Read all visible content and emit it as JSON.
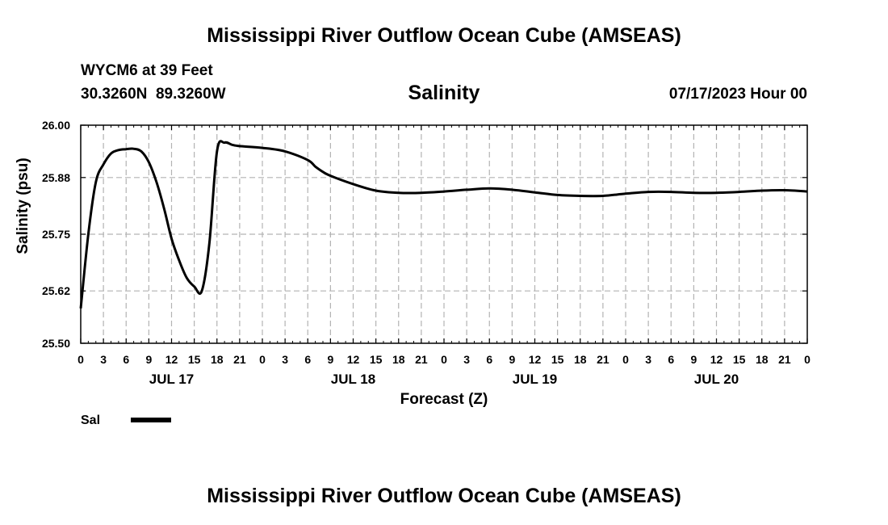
{
  "header": {
    "title": "Mississippi River Outflow Ocean Cube (AMSEAS)",
    "station": "WYCM6 at 39 Feet",
    "coords": "30.3260N  89.3260W",
    "subtitle": "Salinity",
    "date": "07/17/2023 Hour 00"
  },
  "footer": {
    "title": "Mississippi River Outflow Ocean Cube (AMSEAS)"
  },
  "chart_data": {
    "type": "line",
    "title": "Salinity",
    "xlabel": "Forecast (Z)",
    "ylabel": "Salinity (psu)",
    "xlim": [
      0,
      96
    ],
    "ylim": [
      25.5,
      26.0
    ],
    "grid": true,
    "legend_position": "bottom-left",
    "y_ticks": [
      25.5,
      25.62,
      25.75,
      25.88,
      26.0
    ],
    "x_tick_hours": [
      0,
      3,
      6,
      9,
      12,
      15,
      18,
      21,
      24,
      27,
      30,
      33,
      36,
      39,
      42,
      45,
      48,
      51,
      54,
      57,
      60,
      63,
      66,
      69,
      72,
      75,
      78,
      81,
      84,
      87,
      90,
      93,
      96
    ],
    "x_tick_labels": [
      "0",
      "3",
      "6",
      "9",
      "12",
      "15",
      "18",
      "21",
      "0",
      "3",
      "6",
      "9",
      "12",
      "15",
      "18",
      "21",
      "0",
      "3",
      "6",
      "9",
      "12",
      "15",
      "18",
      "21",
      "0",
      "3",
      "6",
      "9",
      "12",
      "15",
      "18",
      "21",
      "0"
    ],
    "day_labels": [
      {
        "label": "JUL 17",
        "hour": 12
      },
      {
        "label": "JUL 18",
        "hour": 36
      },
      {
        "label": "JUL 19",
        "hour": 60
      },
      {
        "label": "JUL 20",
        "hour": 84
      }
    ],
    "series": [
      {
        "name": "Sal",
        "color": "#000000",
        "x": [
          0,
          1,
          2,
          3,
          4,
          5,
          6,
          7,
          8,
          9,
          10,
          11,
          12,
          13,
          14,
          15,
          16,
          17,
          18,
          19,
          20,
          21,
          24,
          27,
          30,
          31,
          32,
          33,
          36,
          39,
          42,
          45,
          48,
          51,
          54,
          57,
          60,
          63,
          66,
          69,
          72,
          75,
          78,
          81,
          84,
          87,
          90,
          93,
          96
        ],
        "y": [
          25.58,
          25.75,
          25.87,
          25.91,
          25.935,
          25.943,
          25.945,
          25.946,
          25.94,
          25.915,
          25.87,
          25.81,
          25.74,
          25.69,
          25.65,
          25.63,
          25.62,
          25.73,
          25.94,
          25.96,
          25.955,
          25.952,
          25.948,
          25.94,
          25.92,
          25.905,
          25.893,
          25.884,
          25.865,
          25.85,
          25.845,
          25.845,
          25.848,
          25.852,
          25.855,
          25.852,
          25.846,
          25.84,
          25.838,
          25.838,
          25.843,
          25.847,
          25.847,
          25.845,
          25.845,
          25.847,
          25.85,
          25.851,
          25.848
        ]
      }
    ]
  }
}
